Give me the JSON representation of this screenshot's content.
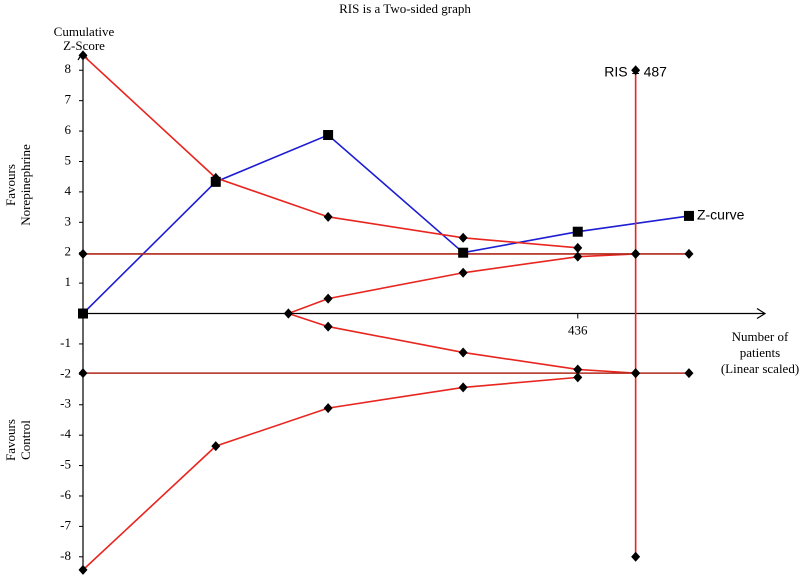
{
  "chart_data": {
    "type": "line",
    "title": "RIS is a Two-sided graph",
    "ylabel": [
      "Cumulative",
      "Z-Score"
    ],
    "xlabel": [
      "Number of",
      "patients",
      "(Linear scaled)"
    ],
    "upper_label": [
      "Favours",
      "Norepinephrine"
    ],
    "lower_label": [
      "Favours",
      "Control"
    ],
    "xlim": [
      0,
      601
    ],
    "ylim": [
      -8.5,
      8.6
    ],
    "xticks": [
      436
    ],
    "yticks": [
      -8,
      -7,
      -6,
      -5,
      -4,
      -3,
      -2,
      -1,
      1,
      2,
      3,
      4,
      5,
      6,
      7,
      8
    ],
    "ris": {
      "label": "RIS = 487",
      "value": 487,
      "color": "#e8251f"
    },
    "series": [
      {
        "name": "Z-curve",
        "color": "#1c1cd4",
        "marker": "square",
        "x": [
          0,
          117,
          216,
          335,
          436,
          534
        ],
        "values": [
          0,
          4.33,
          5.87,
          2.0,
          2.69,
          3.21
        ]
      },
      {
        "color": "#e8251f",
        "marker": "diamond",
        "x": [
          0,
          117,
          216,
          335,
          436
        ],
        "values": [
          8.49,
          4.46,
          3.18,
          2.49,
          2.16
        ]
      },
      {
        "color": "#e8251f",
        "marker": "diamond",
        "x": [
          0,
          117,
          216,
          335,
          436
        ],
        "values": [
          -8.43,
          -4.36,
          -3.11,
          -2.43,
          -2.1
        ]
      },
      {
        "color": "#e8251f",
        "marker": "diamond",
        "x": [
          181,
          216,
          335,
          436,
          487
        ],
        "values": [
          0,
          0.49,
          1.34,
          1.87,
          1.96
        ]
      },
      {
        "color": "#e8251f",
        "marker": "diamond",
        "x": [
          181,
          216,
          335,
          436,
          487
        ],
        "values": [
          0,
          -0.43,
          -1.28,
          -1.84,
          -1.96
        ]
      },
      {
        "color": "#b0281c",
        "marker": "diamond",
        "x": [
          0,
          487,
          534
        ],
        "values": [
          1.96,
          1.96,
          1.96
        ]
      },
      {
        "color": "#b0281c",
        "marker": "diamond",
        "x": [
          0,
          487,
          534
        ],
        "values": [
          -1.96,
          -1.96,
          -1.96
        ]
      },
      {
        "color": "#e8251f",
        "marker": "diamond",
        "x": [
          487,
          487
        ],
        "values": [
          8,
          -8
        ]
      }
    ]
  }
}
